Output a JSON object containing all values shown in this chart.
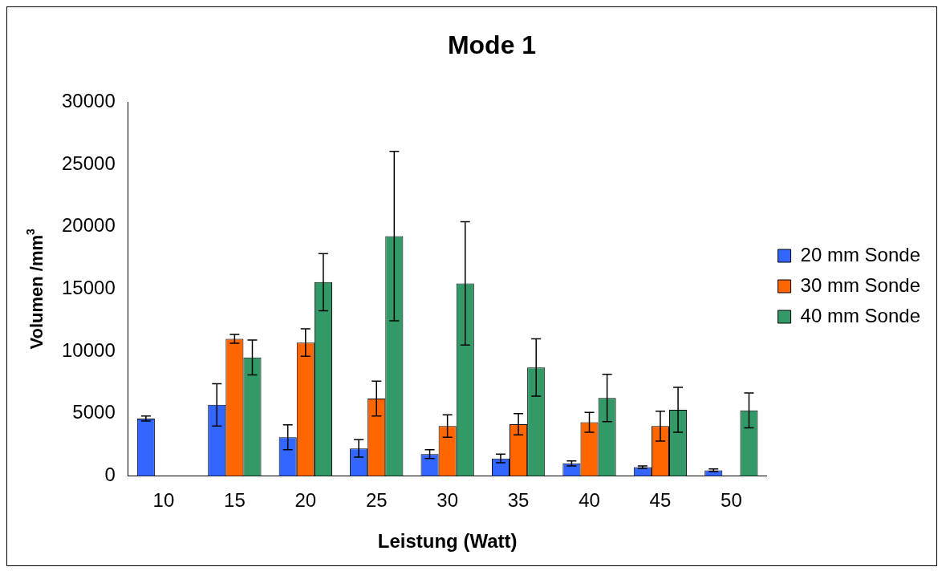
{
  "chart_data": {
    "type": "bar",
    "title": "Mode 1",
    "xlabel": "Leistung (Watt)",
    "ylabel": "Volumen /mm$^{3}$",
    "categories": [
      "10",
      "15",
      "20",
      "25",
      "30",
      "35",
      "40",
      "45",
      "50"
    ],
    "series": [
      {
        "name": "20 mm Sonde",
        "color": "#3366ff",
        "values": [
          4600,
          5700,
          3100,
          2200,
          1750,
          1400,
          1000,
          700,
          450
        ],
        "errors": [
          200,
          1700,
          1000,
          700,
          350,
          350,
          200,
          100,
          100
        ]
      },
      {
        "name": "30 mm Sonde",
        "color": "#ff6600",
        "values": [
          0,
          11000,
          10700,
          6200,
          4000,
          4150,
          4300,
          4000,
          null
        ],
        "errors": [
          null,
          350,
          1100,
          1400,
          900,
          850,
          800,
          1200,
          null
        ]
      },
      {
        "name": "40 mm Sonde",
        "color": "#339966",
        "values": [
          0,
          9500,
          15550,
          19250,
          15450,
          8700,
          6250,
          5300,
          5250
        ],
        "errors": [
          null,
          1400,
          2300,
          6800,
          4950,
          2300,
          1900,
          1800,
          1400
        ]
      }
    ],
    "ylim": [
      0,
      30000
    ],
    "yticks": [
      0,
      5000,
      10000,
      15000,
      20000,
      25000,
      30000
    ],
    "grid": false,
    "legend": "right"
  }
}
